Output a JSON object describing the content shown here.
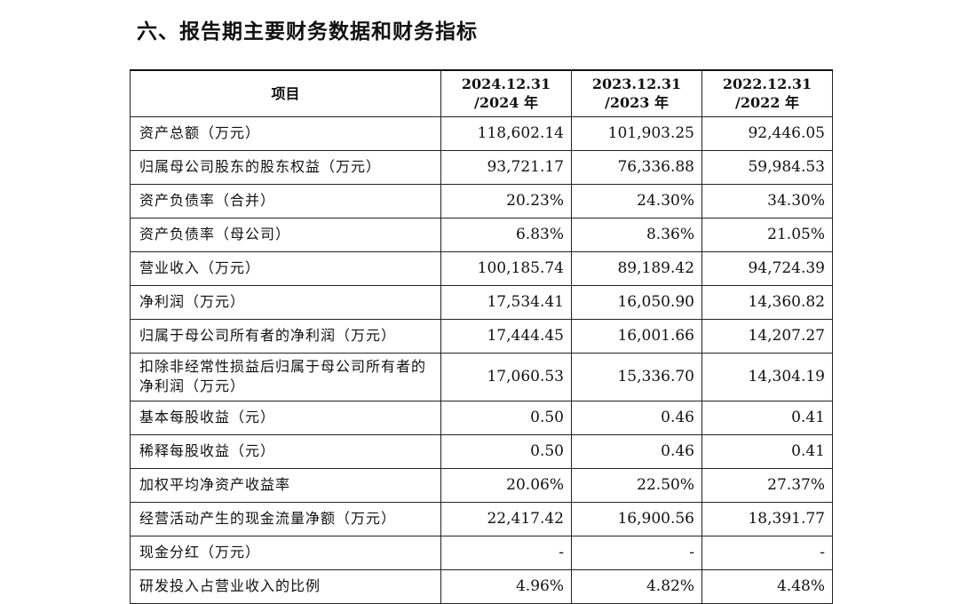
{
  "heading": "六、报告期主要财务数据和财务指标",
  "table": {
    "header": {
      "item": "项目",
      "periods": [
        {
          "line1": "2024.12.31",
          "line2": "/2024 年"
        },
        {
          "line1": "2023.12.31",
          "line2": "/2023 年"
        },
        {
          "line1": "2022.12.31",
          "line2": "/2022 年"
        }
      ]
    },
    "rows": [
      {
        "label": "资产总额（万元）",
        "values": [
          "118,602.14",
          "101,903.25",
          "92,446.05"
        ]
      },
      {
        "label": "归属母公司股东的股东权益（万元）",
        "values": [
          "93,721.17",
          "76,336.88",
          "59,984.53"
        ]
      },
      {
        "label": "资产负债率（合并）",
        "values": [
          "20.23%",
          "24.30%",
          "34.30%"
        ]
      },
      {
        "label": "资产负债率（母公司）",
        "values": [
          "6.83%",
          "8.36%",
          "21.05%"
        ]
      },
      {
        "label": "营业收入（万元）",
        "values": [
          "100,185.74",
          "89,189.42",
          "94,724.39"
        ]
      },
      {
        "label": "净利润（万元）",
        "values": [
          "17,534.41",
          "16,050.90",
          "14,360.82"
        ]
      },
      {
        "label": "归属于母公司所有者的净利润（万元）",
        "values": [
          "17,444.45",
          "16,001.66",
          "14,207.27"
        ]
      },
      {
        "label": "扣除非经常性损益后归属于母公司所有者的净利润（万元）",
        "values": [
          "17,060.53",
          "15,336.70",
          "14,304.19"
        ]
      },
      {
        "label": "基本每股收益（元）",
        "values": [
          "0.50",
          "0.46",
          "0.41"
        ]
      },
      {
        "label": "稀释每股收益（元）",
        "values": [
          "0.50",
          "0.46",
          "0.41"
        ]
      },
      {
        "label": "加权平均净资产收益率",
        "values": [
          "20.06%",
          "22.50%",
          "27.37%"
        ]
      },
      {
        "label": "经营活动产生的现金流量净额（万元）",
        "values": [
          "22,417.42",
          "16,900.56",
          "18,391.77"
        ]
      },
      {
        "label": "现金分红（万元）",
        "values": [
          "-",
          "-",
          "-"
        ]
      },
      {
        "label": "研发投入占营业收入的比例",
        "values": [
          "4.96%",
          "4.82%",
          "4.48%"
        ]
      }
    ]
  }
}
